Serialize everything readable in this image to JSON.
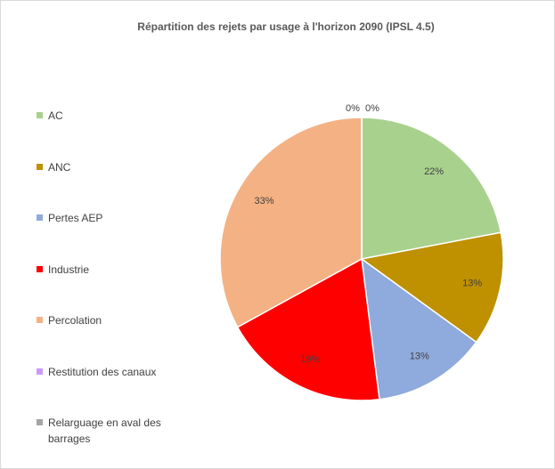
{
  "chart_data": {
    "type": "pie",
    "title": "Répartition des rejets par usage à l'horizon 2090 (IPSL 4.5)",
    "categories": [
      "AC",
      "ANC",
      "Pertes AEP",
      "Industrie",
      "Percolation",
      "Restitution des canaux",
      "Relarguage en aval des barrages"
    ],
    "values": [
      22,
      13,
      13,
      19,
      33,
      0,
      0
    ],
    "value_labels": [
      "22%",
      "13%",
      "13%",
      "19%",
      "33%",
      "0%",
      "0%"
    ],
    "colors": [
      "#a9d18e",
      "#bf9000",
      "#8faadc",
      "#ff0000",
      "#f4b183",
      "#cc99ff",
      "#a5a5a5"
    ],
    "legend": "left"
  }
}
